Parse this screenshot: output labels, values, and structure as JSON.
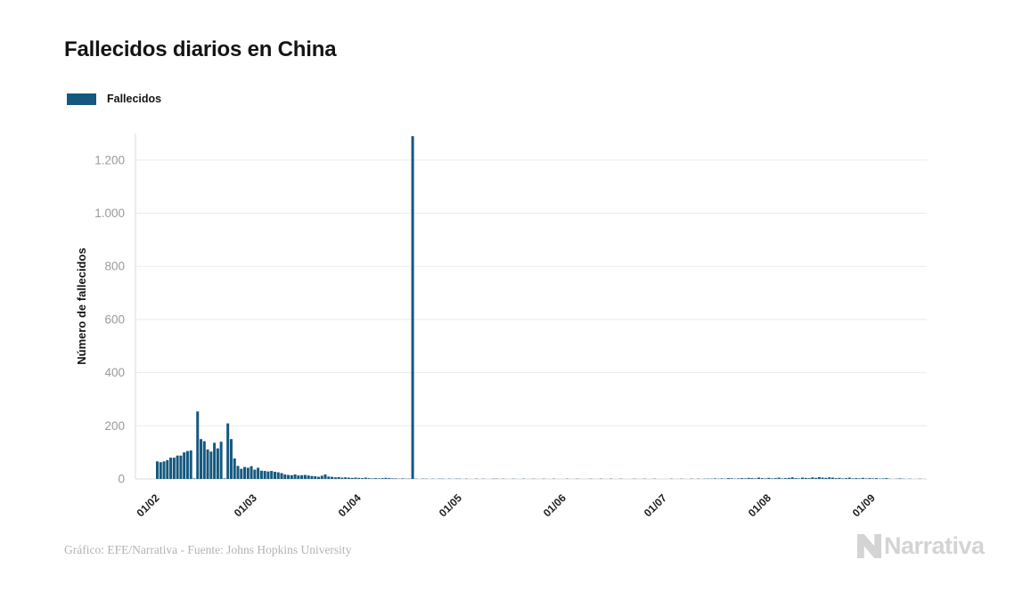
{
  "header": {
    "title": "Fallecidos diarios en China"
  },
  "legend": {
    "items": [
      {
        "label": "Fallecidos",
        "color": "#15587e"
      }
    ]
  },
  "chart_data": {
    "type": "bar",
    "title": "Fallecidos diarios en China",
    "xlabel": "",
    "ylabel": "Número de fallecidos",
    "series_name": "Fallecidos",
    "bar_color": "#15587e",
    "grid": "horizontal",
    "legend_position": "top-left",
    "ylim": [
      0,
      1300
    ],
    "y_ticks": [
      {
        "value": 0,
        "label": "0"
      },
      {
        "value": 200,
        "label": "200"
      },
      {
        "value": 400,
        "label": "400"
      },
      {
        "value": 600,
        "label": "600"
      },
      {
        "value": 800,
        "label": "800"
      },
      {
        "value": 1000,
        "label": "1.000"
      },
      {
        "value": 1200,
        "label": "1.200"
      }
    ],
    "x_ticks": [
      {
        "day_index": 0,
        "label": "01/02"
      },
      {
        "day_index": 29,
        "label": "01/03"
      },
      {
        "day_index": 60,
        "label": "01/04"
      },
      {
        "day_index": 90,
        "label": "01/05"
      },
      {
        "day_index": 121,
        "label": "01/06"
      },
      {
        "day_index": 151,
        "label": "01/07"
      },
      {
        "day_index": 182,
        "label": "01/08"
      },
      {
        "day_index": 213,
        "label": "01/09"
      }
    ],
    "start_date_label": "01/02",
    "values": [
      66,
      63,
      66,
      71,
      80,
      80,
      88,
      88,
      100,
      105,
      107,
      2,
      254,
      150,
      142,
      111,
      103,
      136,
      115,
      140,
      2,
      209,
      150,
      77,
      49,
      38,
      45,
      42,
      48,
      35,
      42,
      31,
      30,
      28,
      30,
      27,
      25,
      22,
      17,
      15,
      14,
      17,
      13,
      14,
      15,
      13,
      11,
      10,
      8,
      12,
      17,
      9,
      8,
      6,
      7,
      5,
      6,
      5,
      4,
      5,
      4,
      3,
      5,
      3,
      2,
      3,
      2,
      3,
      4,
      3,
      2,
      2,
      1,
      2,
      1,
      1,
      1290,
      1,
      0,
      1,
      1,
      0,
      1,
      0,
      1,
      1,
      0,
      1,
      0,
      1,
      1,
      0,
      1,
      0,
      0,
      1,
      0,
      1,
      0,
      0,
      1,
      1,
      0,
      1,
      0,
      0,
      1,
      0,
      0,
      1,
      0,
      0,
      1,
      0,
      0,
      1,
      0,
      0,
      1,
      0,
      0,
      0,
      1,
      0,
      0,
      1,
      0,
      0,
      0,
      1,
      0,
      0,
      1,
      0,
      0,
      1,
      0,
      0,
      1,
      0,
      0,
      0,
      1,
      0,
      0,
      1,
      0,
      0,
      1,
      0,
      0,
      0,
      0,
      1,
      0,
      0,
      1,
      0,
      0,
      1,
      0,
      1,
      0,
      1,
      1,
      1,
      2,
      1,
      2,
      1,
      3,
      2,
      1,
      2,
      3,
      2,
      4,
      3,
      2,
      5,
      3,
      2,
      4,
      2,
      3,
      5,
      2,
      3,
      4,
      6,
      3,
      2,
      5,
      4,
      3,
      6,
      4,
      7,
      5,
      4,
      6,
      5,
      3,
      4,
      2,
      3,
      5,
      2,
      3,
      2,
      4,
      2,
      3,
      2,
      3,
      1,
      2,
      3,
      1,
      0,
      1,
      2,
      1,
      0,
      1,
      0,
      0,
      1,
      0,
      0
    ]
  },
  "footer": {
    "credit": "Gráfico: EFE/Narrativa - Fuente: Johns Hopkins University",
    "brand": "Narrativa"
  },
  "colors": {
    "bar": "#15587e",
    "gridline": "#ebebeb",
    "axis_line": "#d8d8d8",
    "ytick_text": "#9a9a9a",
    "xtick_text": "#1d1d1d",
    "brand_gray": "#d4d4d4"
  }
}
